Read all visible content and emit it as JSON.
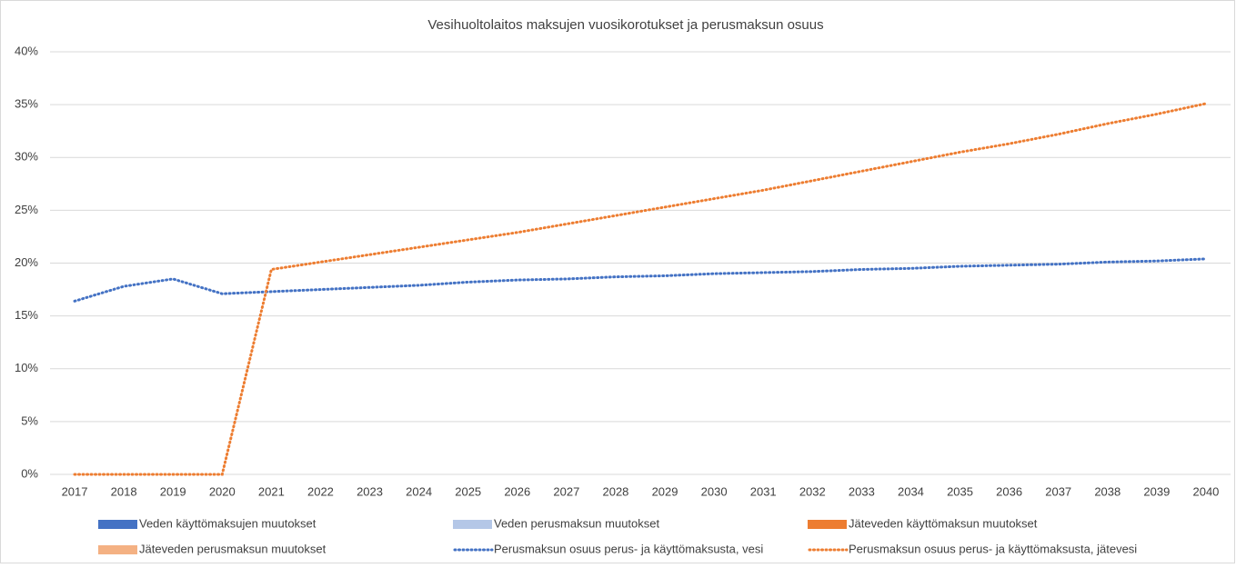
{
  "chart_data": {
    "type": "line",
    "title": "Vesihuoltolaitos maksujen vuosikorotukset ja perusmaksun osuus",
    "categories": [
      "2017",
      "2018",
      "2019",
      "2020",
      "2021",
      "2022",
      "2023",
      "2024",
      "2025",
      "2026",
      "2027",
      "2028",
      "2029",
      "2030",
      "2031",
      "2032",
      "2033",
      "2034",
      "2035",
      "2036",
      "2037",
      "2038",
      "2039",
      "2040"
    ],
    "series": [
      {
        "name": "Veden käyttömaksujen muutokset",
        "type": "bar",
        "color": "#4472c4",
        "values": [
          null,
          null,
          null,
          null,
          null,
          null,
          null,
          null,
          null,
          null,
          null,
          null,
          null,
          null,
          null,
          null,
          null,
          null,
          null,
          null,
          null,
          null,
          null,
          null
        ]
      },
      {
        "name": "Veden perusmaksun muutokset",
        "type": "bar",
        "color": "#b4c7e7",
        "values": [
          null,
          null,
          null,
          null,
          null,
          null,
          null,
          null,
          null,
          null,
          null,
          null,
          null,
          null,
          null,
          null,
          null,
          null,
          null,
          null,
          null,
          null,
          null,
          null
        ]
      },
      {
        "name": "Jäteveden käyttömaksun muutokset",
        "type": "bar",
        "color": "#ed7d31",
        "values": [
          null,
          null,
          null,
          null,
          null,
          null,
          null,
          null,
          null,
          null,
          null,
          null,
          null,
          null,
          null,
          null,
          null,
          null,
          null,
          null,
          null,
          null,
          null,
          null
        ]
      },
      {
        "name": "Jäteveden perusmaksun muutokset",
        "type": "bar",
        "color": "#f4b183",
        "values": [
          null,
          null,
          null,
          null,
          null,
          null,
          null,
          null,
          null,
          null,
          null,
          null,
          null,
          null,
          null,
          null,
          null,
          null,
          null,
          null,
          null,
          null,
          null,
          null
        ]
      },
      {
        "name": "Perusmaksun osuus perus- ja käyttömaksusta, vesi",
        "type": "line",
        "color": "#4472c4",
        "values": [
          16.4,
          17.8,
          18.5,
          17.1,
          17.3,
          17.5,
          17.7,
          17.9,
          18.2,
          18.4,
          18.5,
          18.7,
          18.8,
          19.0,
          19.1,
          19.2,
          19.4,
          19.5,
          19.7,
          19.8,
          19.9,
          20.1,
          20.2,
          20.4
        ]
      },
      {
        "name": "Perusmaksun osuus perus- ja käyttömaksusta, jätevesi",
        "type": "line",
        "color": "#ed7d31",
        "values": [
          0,
          0,
          0,
          0,
          19.4,
          20.1,
          20.8,
          21.5,
          22.2,
          22.9,
          23.7,
          24.5,
          25.3,
          26.1,
          26.9,
          27.8,
          28.7,
          29.6,
          30.5,
          31.3,
          32.2,
          33.2,
          34.1,
          35.1
        ]
      }
    ],
    "ylim": [
      0,
      40
    ],
    "yticks": [
      {
        "value": 0,
        "label": "0%"
      },
      {
        "value": 5,
        "label": "5%"
      },
      {
        "value": 10,
        "label": "10%"
      },
      {
        "value": 15,
        "label": "15%"
      },
      {
        "value": 20,
        "label": "20%"
      },
      {
        "value": 25,
        "label": "25%"
      },
      {
        "value": 30,
        "label": "30%"
      },
      {
        "value": 35,
        "label": "35%"
      },
      {
        "value": 40,
        "label": "40%"
      }
    ],
    "grid": true,
    "legend": "bottom"
  }
}
